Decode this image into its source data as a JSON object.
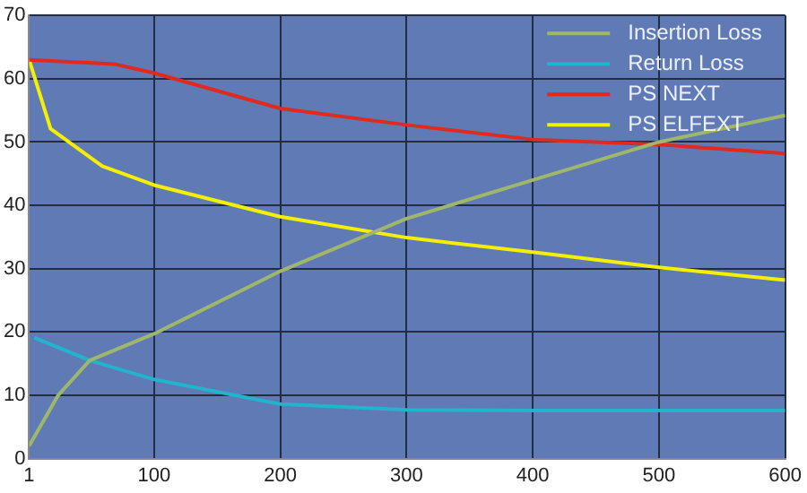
{
  "chart_data": {
    "type": "line",
    "xlim": [
      1,
      600
    ],
    "xticks": [
      1,
      100,
      200,
      300,
      400,
      500,
      600
    ],
    "ylim": [
      0,
      70
    ],
    "yticks": [
      0,
      10,
      20,
      30,
      40,
      50,
      60,
      70
    ],
    "grid": true,
    "legend": "top right",
    "marker": "none",
    "line_style": "solid",
    "series": [
      {
        "name": "Insertion Loss",
        "color": "#9fb76a",
        "x": [
          1,
          24,
          49,
          100,
          200,
          300,
          400,
          500,
          600
        ],
        "values": [
          2,
          10,
          15.5,
          19.7,
          29.6,
          37.9,
          44,
          50,
          54.2
        ]
      },
      {
        "name": "Return Loss",
        "color": "#22b4cc",
        "x": [
          5,
          49,
          100,
          200,
          300,
          400,
          500,
          600
        ],
        "values": [
          19.1,
          15.5,
          12.5,
          8.6,
          7.7,
          7.6,
          7.6,
          7.6
        ]
      },
      {
        "name": "PS NEXT",
        "color": "#e02a1e",
        "x": [
          1,
          69,
          100,
          200,
          300,
          400,
          500,
          600
        ],
        "values": [
          63,
          62.3,
          60.9,
          55.3,
          52.7,
          50.4,
          49.6,
          48.2
        ]
      },
      {
        "name": "PS ELFEXT",
        "color": "#f5f000",
        "x": [
          1,
          18,
          59,
          100,
          200,
          300,
          400,
          500,
          600
        ],
        "values": [
          63,
          52.1,
          46.2,
          43.2,
          38.2,
          34.9,
          32.6,
          30.2,
          28.2
        ]
      }
    ]
  }
}
